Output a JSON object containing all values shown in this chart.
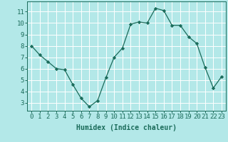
{
  "x": [
    0,
    1,
    2,
    3,
    4,
    5,
    6,
    7,
    8,
    9,
    10,
    11,
    12,
    13,
    14,
    15,
    16,
    17,
    18,
    19,
    20,
    21,
    22,
    23
  ],
  "y": [
    8.0,
    7.2,
    6.6,
    6.0,
    5.9,
    4.6,
    3.4,
    2.65,
    3.2,
    5.2,
    7.0,
    7.8,
    9.9,
    10.1,
    10.0,
    11.3,
    11.1,
    9.8,
    9.8,
    8.8,
    8.2,
    6.1,
    4.3,
    5.3
  ],
  "xlabel": "Humidex (Indice chaleur)",
  "xlim": [
    -0.5,
    23.5
  ],
  "ylim": [
    2.3,
    11.9
  ],
  "yticks": [
    3,
    4,
    5,
    6,
    7,
    8,
    9,
    10,
    11
  ],
  "xticks": [
    0,
    1,
    2,
    3,
    4,
    5,
    6,
    7,
    8,
    9,
    10,
    11,
    12,
    13,
    14,
    15,
    16,
    17,
    18,
    19,
    20,
    21,
    22,
    23
  ],
  "line_color": "#1a6b5a",
  "marker": "D",
  "marker_size": 2.2,
  "bg_color": "#b3e8e8",
  "grid_color": "#ffffff",
  "label_color": "#1a6b5a",
  "tick_color": "#1a6b5a",
  "xlabel_fontsize": 7,
  "tick_fontsize": 6.5
}
